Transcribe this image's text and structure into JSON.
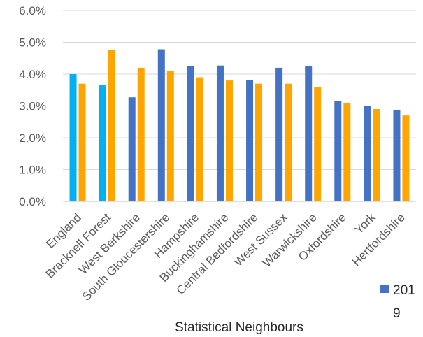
{
  "chart_data": {
    "type": "bar",
    "title": "",
    "xlabel": "Statistical Neighbours",
    "ylabel": "",
    "ylim": [
      0,
      0.06
    ],
    "yticks": [
      "0.0%",
      "1.0%",
      "2.0%",
      "3.0%",
      "4.0%",
      "5.0%",
      "6.0%"
    ],
    "grid": true,
    "legend_position": "bottom-right",
    "categories": [
      "England",
      "Bracknell Forest",
      "West Berkshire",
      "South Gloucestershire",
      "Hampshire",
      "Buckinghamshire",
      "Central Bedfordshire",
      "West Sussex",
      "Warwickshire",
      "Oxfordshire",
      "York",
      "Hertfordshire"
    ],
    "series": [
      {
        "name": "2019",
        "legend_lines": [
          "201",
          "9"
        ],
        "color": "#4472C4",
        "highlight_color": "#00B0F0",
        "highlight_categories": [
          "England",
          "Bracknell Forest"
        ],
        "values": [
          0.04,
          0.0367,
          0.0327,
          0.0478,
          0.0426,
          0.0427,
          0.0382,
          0.042,
          0.0426,
          0.0315,
          0.03,
          0.0288
        ]
      },
      {
        "name": "",
        "color": "#FFA500",
        "values": [
          0.037,
          0.0477,
          0.042,
          0.041,
          0.039,
          0.038,
          0.037,
          0.037,
          0.036,
          0.031,
          0.029,
          0.027
        ]
      }
    ]
  }
}
